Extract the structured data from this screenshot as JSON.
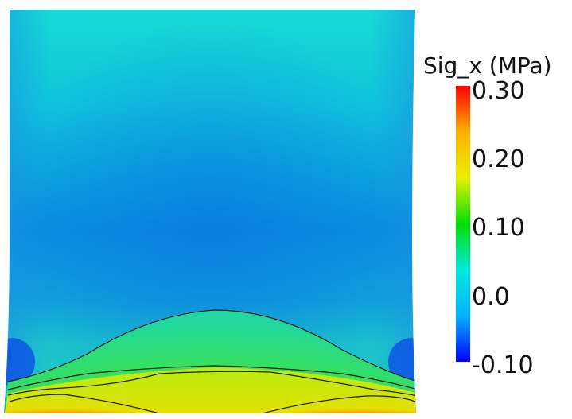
{
  "legend": {
    "title": "Sig_x (MPa)",
    "ticks": [
      "0.30",
      "0.20",
      "0.10",
      "0.0",
      "-0.10"
    ],
    "min": -0.1,
    "max": 0.3,
    "colormap": [
      "#0000ff",
      "#00b4ff",
      "#00e8e0",
      "#00e000",
      "#e8f000",
      "#ffb000",
      "#ff0000"
    ]
  }
}
